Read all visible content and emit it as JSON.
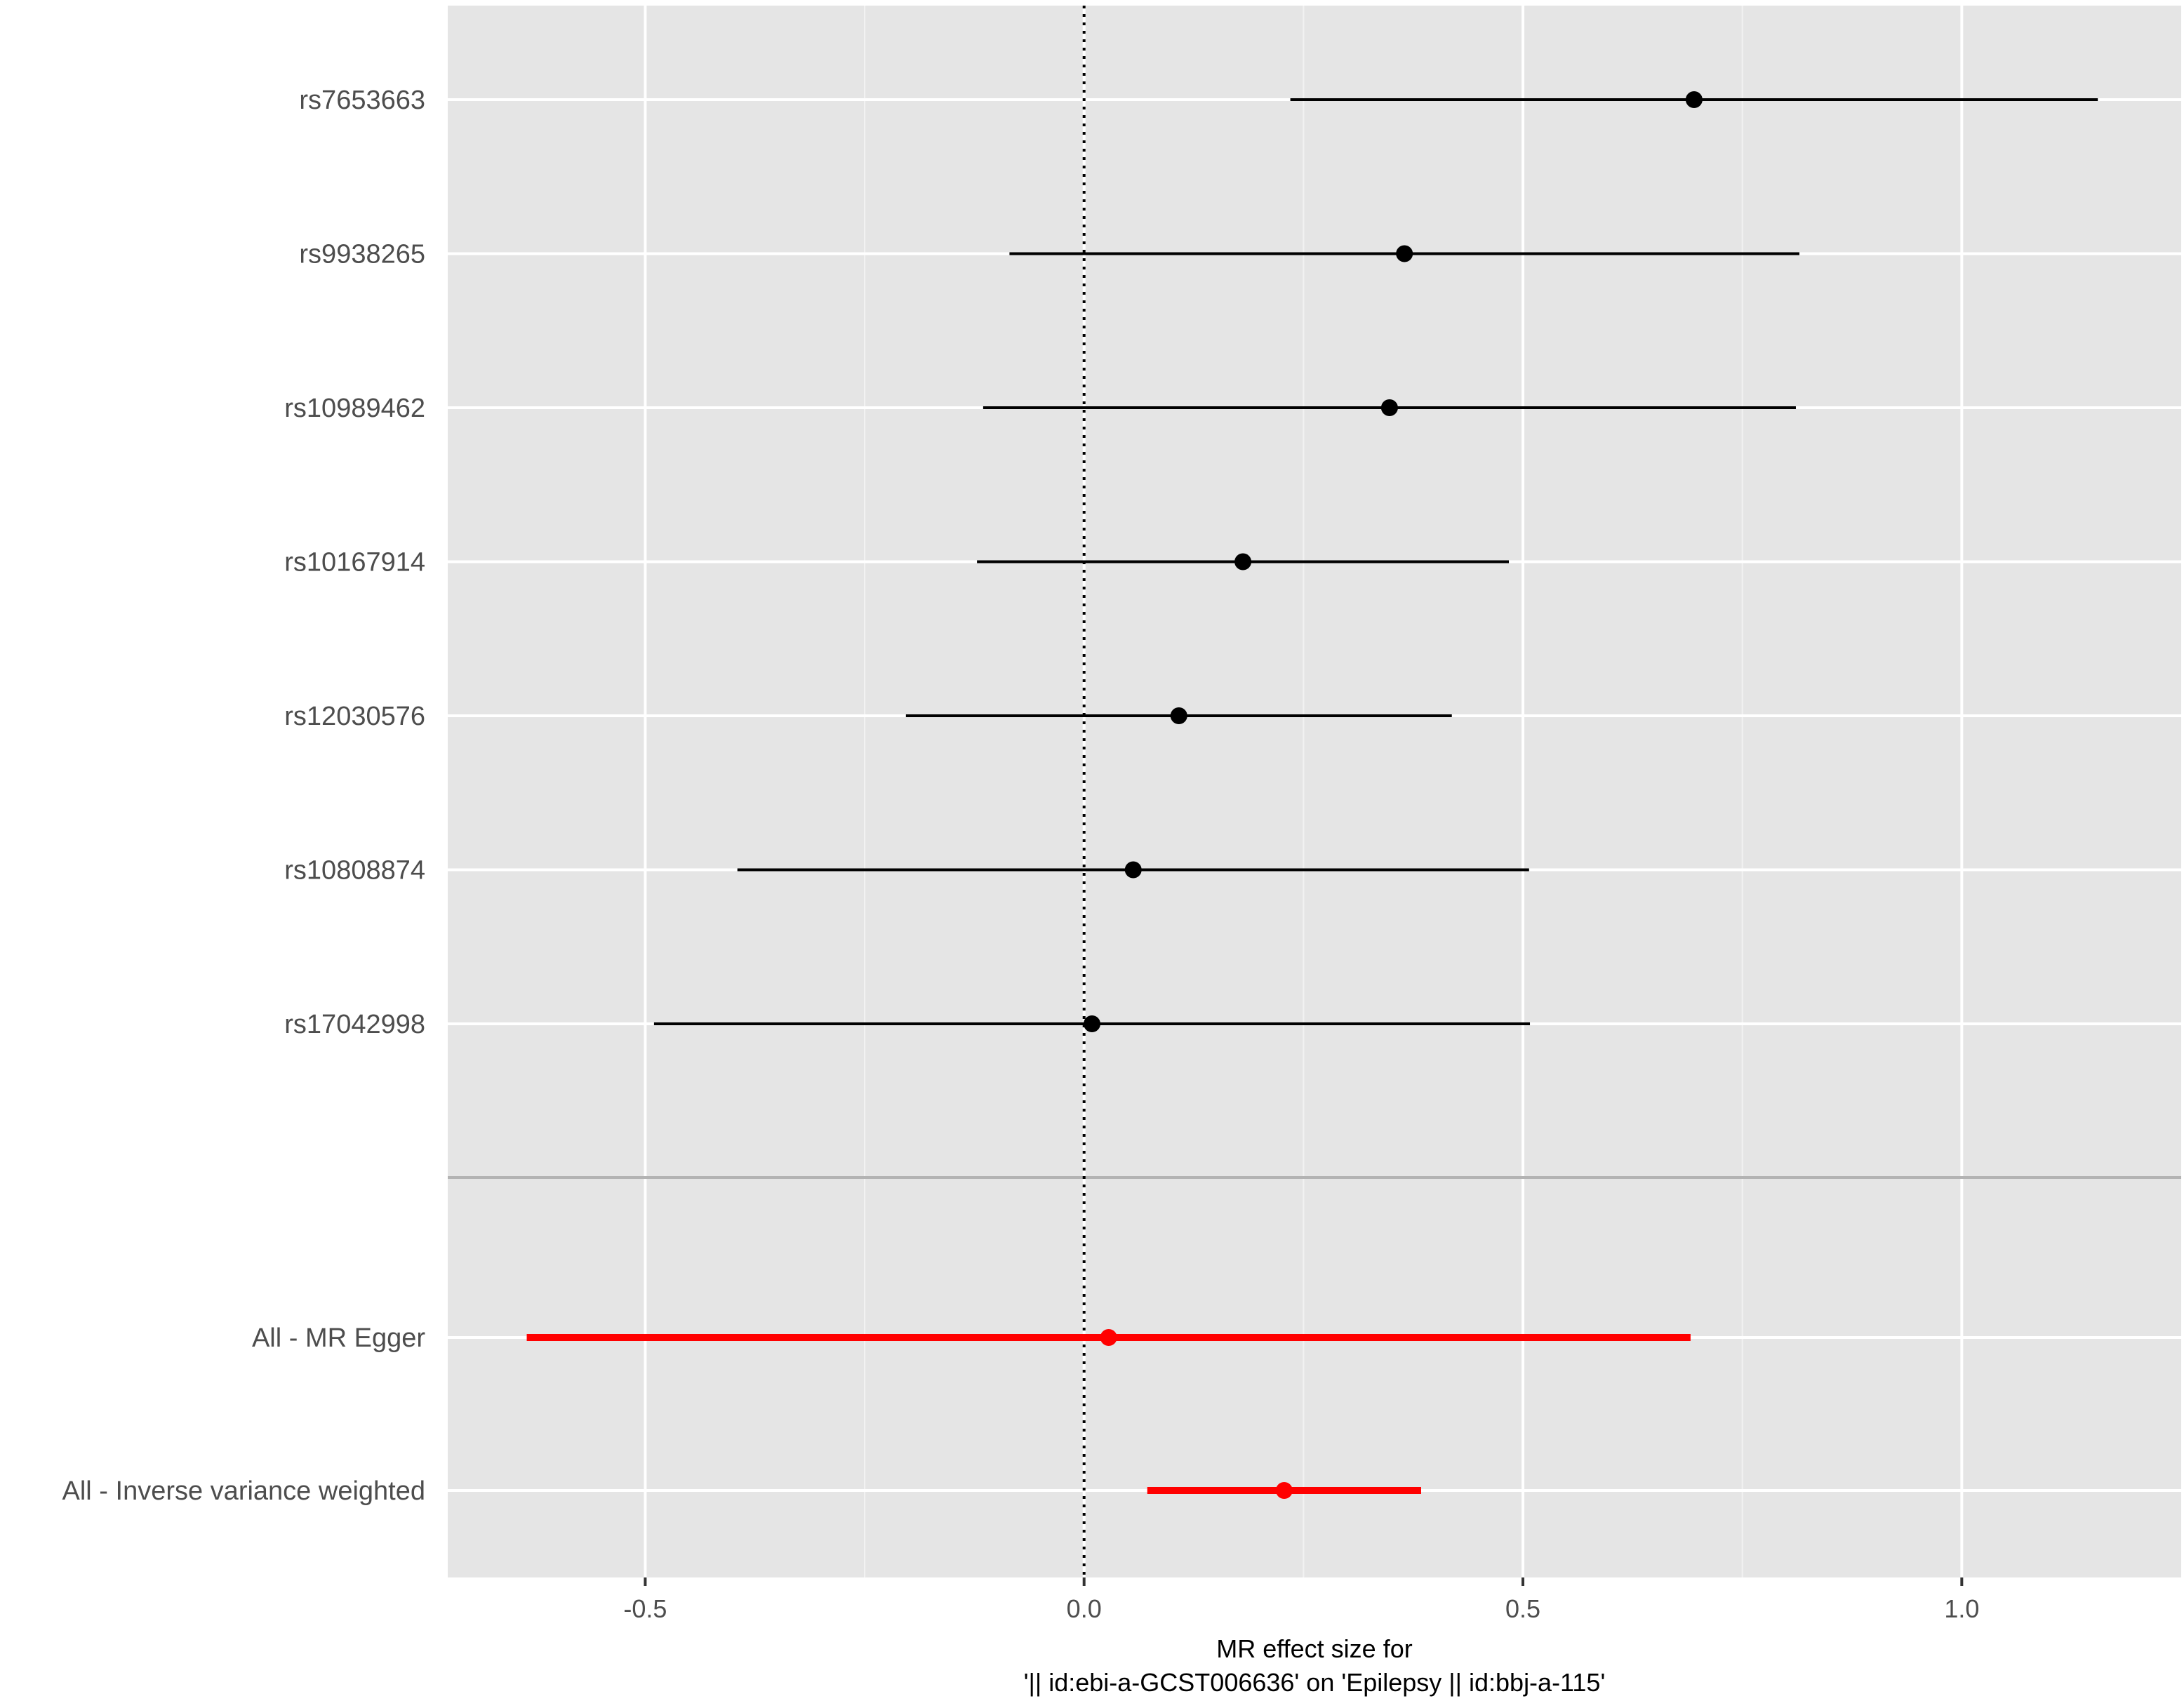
{
  "chart_data": {
    "type": "forest",
    "xlabel_line1": "MR effect size for",
    "xlabel_line2": "'|| id:ebi-a-GCST006636' on 'Epilepsy || id:bbj-a-115'",
    "xlim": [
      -0.725,
      1.25
    ],
    "x_ticks": [
      -0.5,
      0.0,
      0.5,
      1.0
    ],
    "x_tick_labels": [
      "-0.5",
      "0.0",
      "0.5",
      "1.0"
    ],
    "reference_line": 0,
    "grid": true,
    "panel_background": "#e5e5e5",
    "snp_color": "#000000",
    "summary_color": "#ff0000",
    "snps": [
      {
        "label": "rs7653663",
        "b": 0.695,
        "lo": 0.235,
        "hi": 1.155
      },
      {
        "label": "rs9938265",
        "b": 0.365,
        "lo": -0.085,
        "hi": 0.815
      },
      {
        "label": "rs10989462",
        "b": 0.348,
        "lo": -0.115,
        "hi": 0.811
      },
      {
        "label": "rs10167914",
        "b": 0.181,
        "lo": -0.122,
        "hi": 0.484
      },
      {
        "label": "rs12030576",
        "b": 0.108,
        "lo": -0.203,
        "hi": 0.419
      },
      {
        "label": "rs10808874",
        "b": 0.056,
        "lo": -0.395,
        "hi": 0.507
      },
      {
        "label": "rs17042998",
        "b": 0.009,
        "lo": -0.49,
        "hi": 0.508
      }
    ],
    "summaries": [
      {
        "label": "All - MR Egger",
        "b": 0.028,
        "lo": -0.635,
        "hi": 0.691
      },
      {
        "label": "All - Inverse variance weighted",
        "b": 0.228,
        "lo": 0.072,
        "hi": 0.384
      }
    ]
  }
}
